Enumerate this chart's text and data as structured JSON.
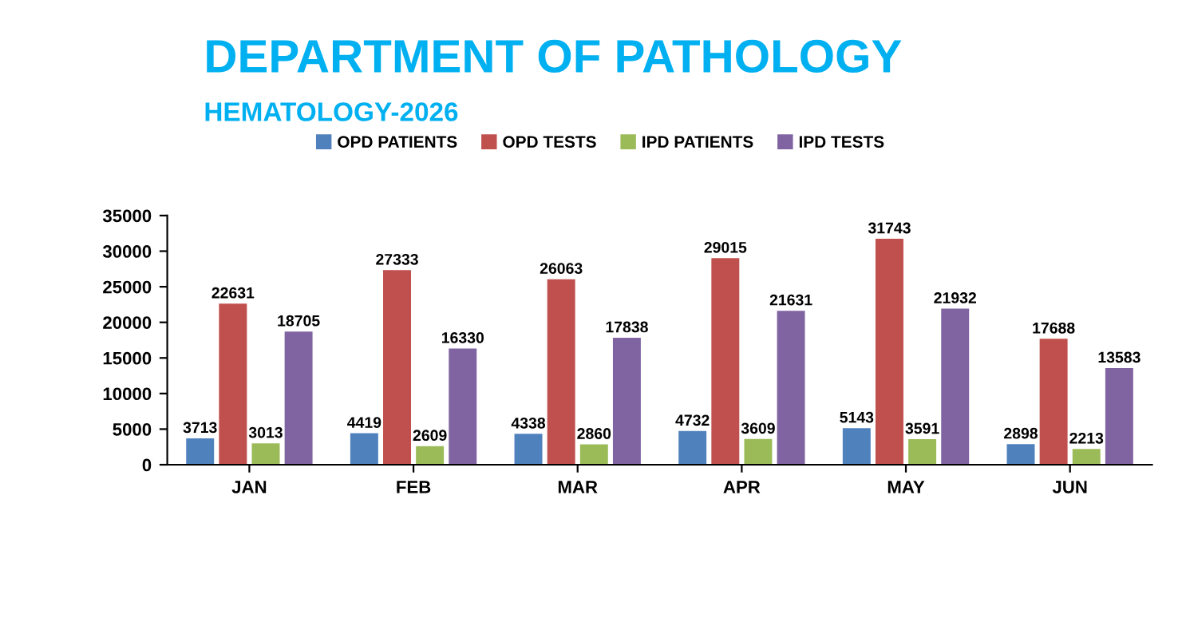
{
  "chart_data": {
    "type": "bar",
    "title": "DEPARTMENT OF PATHOLOGY",
    "subtitle": "HEMATOLOGY-2026",
    "categories": [
      "JAN",
      "FEB",
      "MAR",
      "APR",
      "MAY",
      "JUN"
    ],
    "series": [
      {
        "name": "OPD PATIENTS",
        "color": "#4f81bd",
        "values": [
          3713,
          4419,
          4338,
          4732,
          5143,
          2898
        ]
      },
      {
        "name": "OPD TESTS",
        "color": "#c0504d",
        "values": [
          22631,
          27333,
          26063,
          29015,
          31743,
          17688
        ]
      },
      {
        "name": "IPD PATIENTS",
        "color": "#9bbb59",
        "values": [
          3013,
          2609,
          2860,
          3609,
          3591,
          2213
        ]
      },
      {
        "name": "IPD TESTS",
        "color": "#8064a2",
        "values": [
          18705,
          16330,
          17838,
          21631,
          21932,
          13583
        ]
      }
    ],
    "ylim": [
      0,
      35000
    ],
    "yticks": [
      0,
      5000,
      10000,
      15000,
      20000,
      25000,
      30000,
      35000
    ],
    "grid": false,
    "legend": "top",
    "data_labels": true
  }
}
